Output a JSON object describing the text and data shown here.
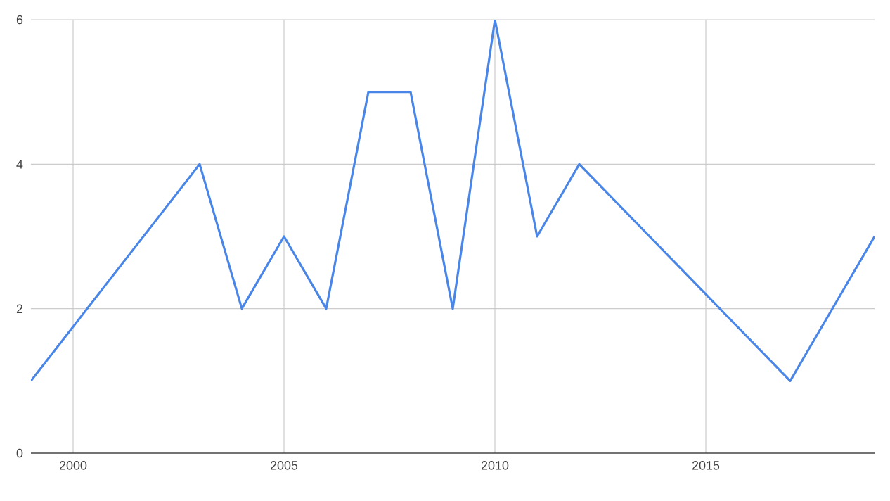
{
  "chart_data": {
    "type": "line",
    "x": [
      1999,
      2003,
      2004,
      2005,
      2006,
      2007,
      2008,
      2009,
      2010,
      2011,
      2012,
      2017,
      2019
    ],
    "values": [
      1,
      4,
      2,
      3,
      2,
      5,
      5,
      2,
      6,
      3,
      4,
      1,
      3
    ],
    "color": "#4a86e8",
    "xlim": [
      1999,
      2019
    ],
    "xticks": [
      2000,
      2005,
      2010,
      2015
    ],
    "ylim": [
      0,
      6
    ],
    "yticks": [
      0,
      2,
      4,
      6
    ],
    "grid": true,
    "line_style": "solid",
    "marker": "none"
  }
}
